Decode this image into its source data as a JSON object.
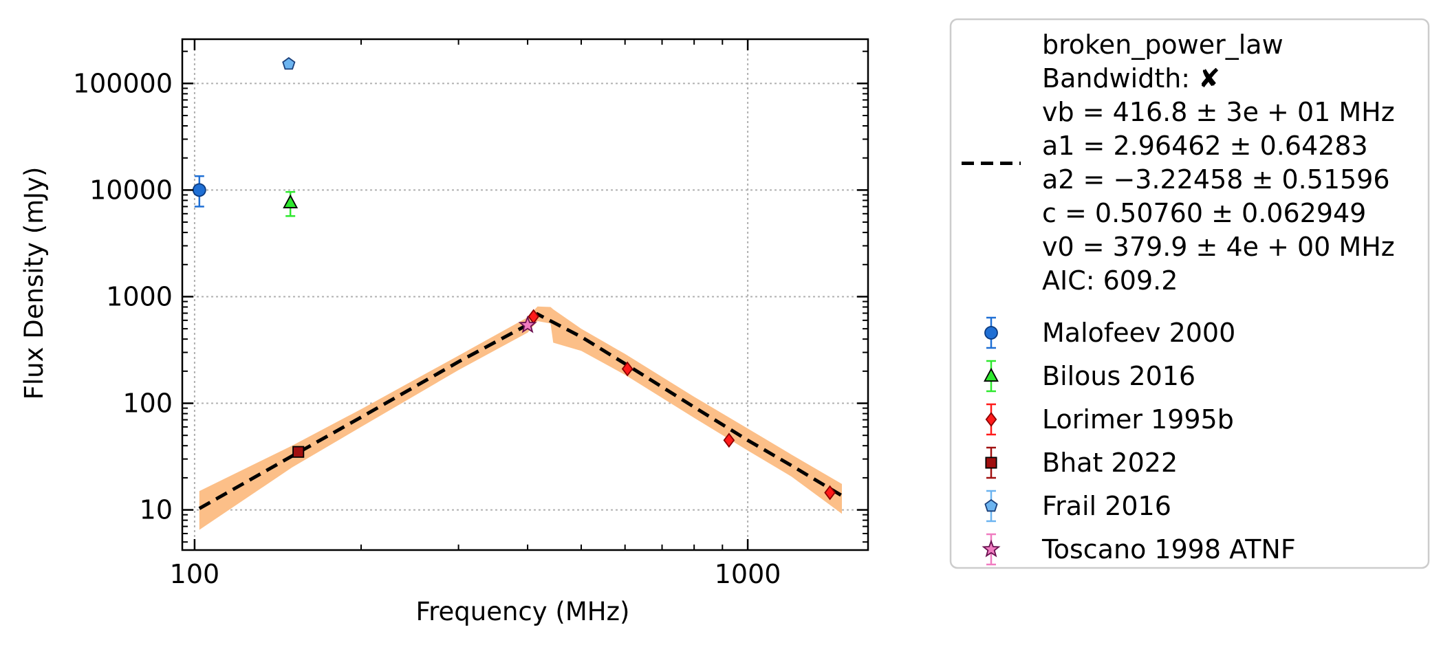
{
  "chart_data": {
    "type": "scatter",
    "xlabel": "Frequency (MHz)",
    "ylabel": "Flux Density (mJy)",
    "xscale": "log",
    "yscale": "log",
    "xlim": [
      95,
      1650
    ],
    "ylim": [
      4.2,
      260000
    ],
    "grid": true,
    "legend_position": "outside-right",
    "x_ticks": [
      {
        "value": 100,
        "label": "100"
      },
      {
        "value": 1000,
        "label": "1000"
      }
    ],
    "y_ticks": [
      {
        "value": 10,
        "label": "10"
      },
      {
        "value": 100,
        "label": "100"
      },
      {
        "value": 1000,
        "label": "1000"
      },
      {
        "value": 10000,
        "label": "10000"
      },
      {
        "value": 100000,
        "label": "100000"
      }
    ],
    "fit": {
      "name": "broken_power_law",
      "legend_lines": [
        "broken_power_law",
        "Bandwidth: ✘",
        "vb = 416.8 ± 3e + 01 MHz",
        "a1 = 2.96462 ± 0.64283",
        "a2 = −3.22458 ± 0.51596",
        "c = 0.50760 ± 0.062949",
        "v0 = 379.9 ± 4e + 00 MHz",
        "AIC: 609.2"
      ],
      "color": "#000000",
      "band_color": "#fcbf88",
      "line_x": [
        102,
        150,
        200,
        300,
        400,
        416.8,
        500,
        600,
        800,
        1000,
        1200,
        1480
      ],
      "line_y": [
        10.3,
        32.0,
        74.0,
        245,
        545,
        685,
        420,
        235,
        92,
        45,
        26,
        13.6
      ],
      "band_x": [
        102,
        150,
        200,
        300,
        400,
        416.8,
        440,
        445,
        500,
        600,
        800,
        1000,
        1200,
        1480
      ],
      "band_upper": [
        15.0,
        40.0,
        88.0,
        280,
        640,
        810,
        800,
        760,
        500,
        290,
        115,
        58,
        33,
        17.5
      ],
      "band_lower": [
        6.5,
        25.0,
        60.0,
        205,
        460,
        590,
        560,
        370,
        310,
        185,
        73,
        36,
        20.5,
        9.2
      ]
    },
    "series": [
      {
        "name": "Malofeev 2000",
        "marker": "circle",
        "color": "#1f6fd4",
        "edge": "#0a3a80",
        "err_color": "#1f6fd4",
        "points": [
          {
            "x": 102,
            "y": 10000,
            "yerr_low": 7000,
            "yerr_high": 13500
          }
        ]
      },
      {
        "name": "Bilous 2016",
        "marker": "triangle",
        "color": "#2ee82e",
        "edge": "#000000",
        "err_color": "#2ee82e",
        "points": [
          {
            "x": 149,
            "y": 7600,
            "yerr_low": 5700,
            "yerr_high": 9600
          }
        ]
      },
      {
        "name": "Lorimer 1995b",
        "marker": "diamond",
        "color": "#ff1a1a",
        "edge": "#8b0000",
        "err_color": "#ff1a1a",
        "points": [
          {
            "x": 410,
            "y": 650
          },
          {
            "x": 606,
            "y": 210
          },
          {
            "x": 925,
            "y": 45
          },
          {
            "x": 1408,
            "y": 14.5
          }
        ]
      },
      {
        "name": "Bhat 2022",
        "marker": "square",
        "color": "#a01010",
        "edge": "#000000",
        "err_color": "#a01010",
        "points": [
          {
            "x": 154,
            "y": 35
          }
        ]
      },
      {
        "name": "Frail 2016",
        "marker": "pentagon",
        "color": "#6cb4f0",
        "edge": "#1a3f7a",
        "err_color": "#6cb4f0",
        "points": [
          {
            "x": 148,
            "y": 152000
          }
        ]
      },
      {
        "name": "Toscano 1998 ATNF",
        "marker": "star",
        "color": "#f07cc0",
        "edge": "#6a1050",
        "err_color": "#f07cc0",
        "points": [
          {
            "x": 400,
            "y": 540
          }
        ]
      }
    ]
  }
}
